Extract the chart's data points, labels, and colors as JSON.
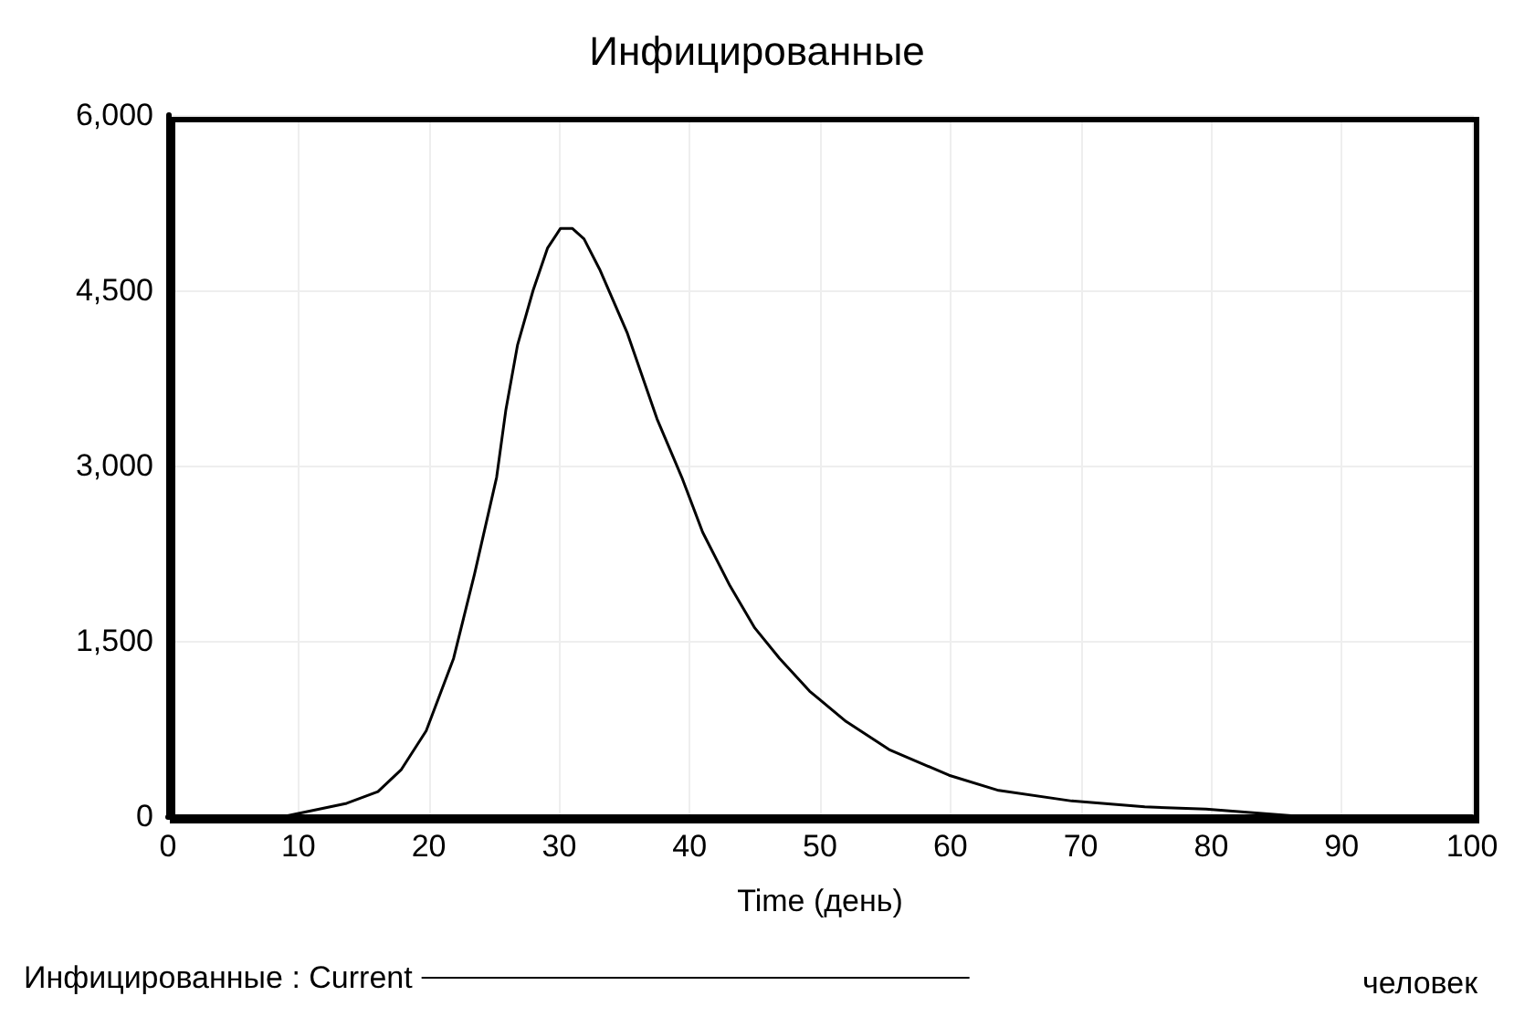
{
  "chart_data": {
    "type": "line",
    "title": "Инфицированные",
    "xlabel": "Time (день)",
    "x": [
      0,
      5,
      9,
      13.7,
      16.1,
      17.9,
      19.8,
      21.9,
      23.5,
      25.2,
      25.9,
      26.8,
      28.0,
      29.1,
      30.1,
      31.0,
      31.9,
      33.1,
      35.2,
      37.5,
      39.4,
      41.0,
      43.1,
      45.0,
      46.9,
      49.2,
      52.0,
      55.3,
      59.9,
      63.7,
      69.3,
      74.9,
      79.6,
      86.6,
      93,
      100
    ],
    "series": [
      {
        "name": "Инфицированные : Current",
        "color": "#000000",
        "values": [
          0,
          0,
          0,
          110,
          210,
          400,
          730,
          1350,
          2070,
          2900,
          3470,
          4030,
          4500,
          4860,
          5030,
          5030,
          4940,
          4680,
          4140,
          3400,
          2900,
          2430,
          1970,
          1610,
          1350,
          1070,
          810,
          570,
          350,
          220,
          130,
          80,
          60,
          0,
          0,
          0
        ]
      }
    ],
    "annotations": [
      "человек"
    ],
    "xlim": [
      0,
      100
    ],
    "xticks": [
      0,
      10,
      20,
      30,
      40,
      50,
      60,
      70,
      80,
      90,
      100
    ],
    "ylim": [
      0,
      6000
    ],
    "yticks": [
      0,
      {
        "value": 1500,
        "label": "1,500"
      },
      {
        "value": 3000,
        "label": "3,000"
      },
      {
        "value": 4500,
        "label": "4,500"
      },
      {
        "value": 6000,
        "label": "6,000"
      }
    ],
    "grid": true,
    "legend": "bottom",
    "marker": "none",
    "line_style": "solid"
  }
}
